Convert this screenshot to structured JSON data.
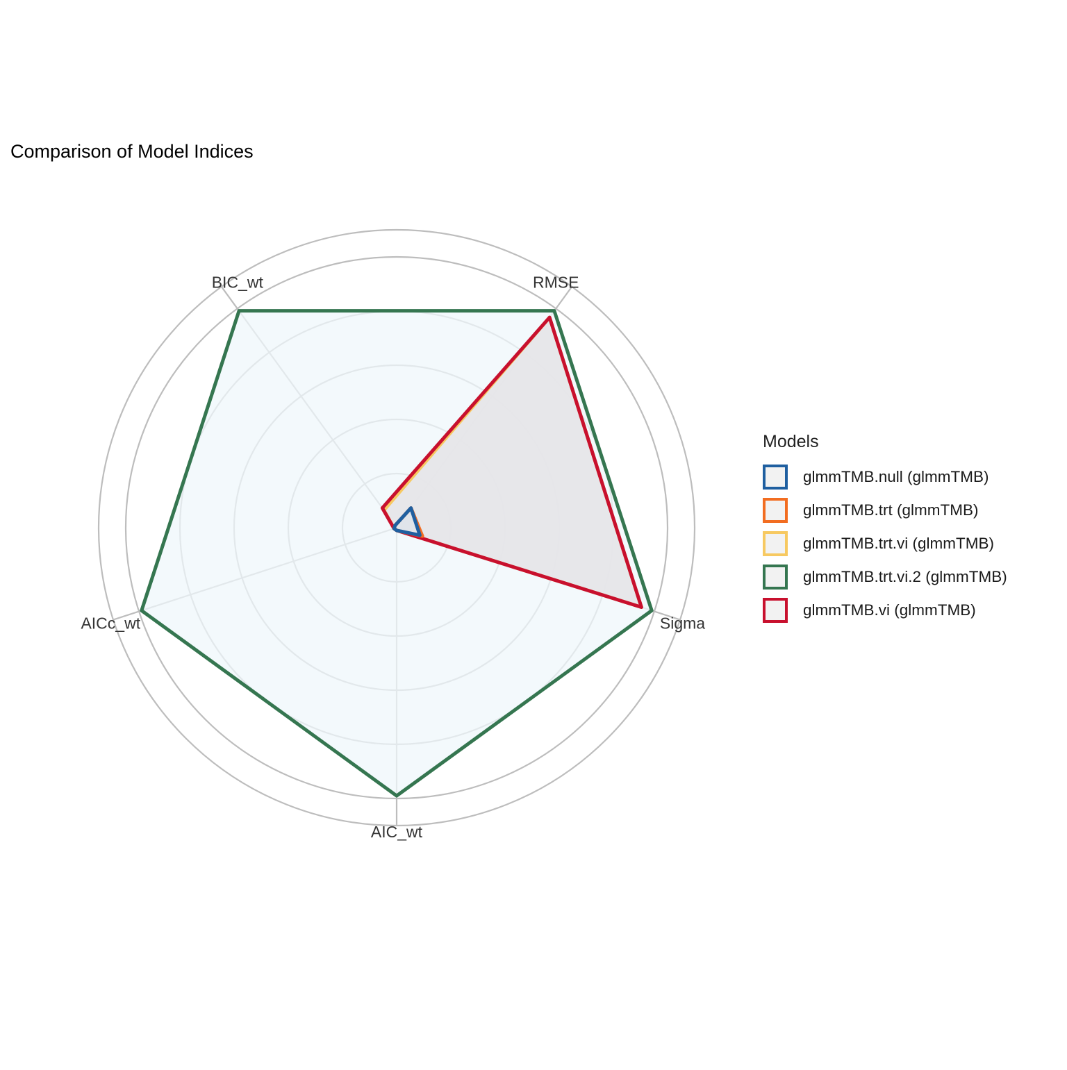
{
  "chart_data": {
    "type": "radar",
    "title": "Comparison of Model Indices",
    "axes": [
      "RMSE",
      "Sigma",
      "AIC_wt",
      "AICc_wt",
      "BIC_wt"
    ],
    "rlim": [
      0,
      1
    ],
    "grid": true,
    "legend_title": "Models",
    "legend_position": "right",
    "series": [
      {
        "name": "glmmTMB.null (glmmTMB)",
        "color": "#1f5fa0",
        "fill": "#dce3ec",
        "values": [
          0.09,
          0.09,
          0.01,
          0.01,
          0.01
        ]
      },
      {
        "name": "glmmTMB.trt (glmmTMB)",
        "color": "#f26d21",
        "fill": "#e9e4df",
        "values": [
          0.09,
          0.1,
          0.01,
          0.01,
          0.01
        ]
      },
      {
        "name": "glmmTMB.trt.vi (glmmTMB)",
        "color": "#f7c961",
        "fill": "#e9e6dc",
        "values": [
          0.96,
          0.95,
          0.01,
          0.01,
          0.08
        ]
      },
      {
        "name": "glmmTMB.trt.vi.2 (glmmTMB)",
        "color": "#357650",
        "fill": "#eff7fb",
        "values": [
          0.99,
          0.99,
          0.99,
          0.99,
          0.99
        ]
      },
      {
        "name": "glmmTMB.vi (glmmTMB)",
        "color": "#c8102e",
        "fill": "#e6e6ec",
        "values": [
          0.96,
          0.95,
          0.01,
          0.01,
          0.09
        ]
      }
    ]
  }
}
